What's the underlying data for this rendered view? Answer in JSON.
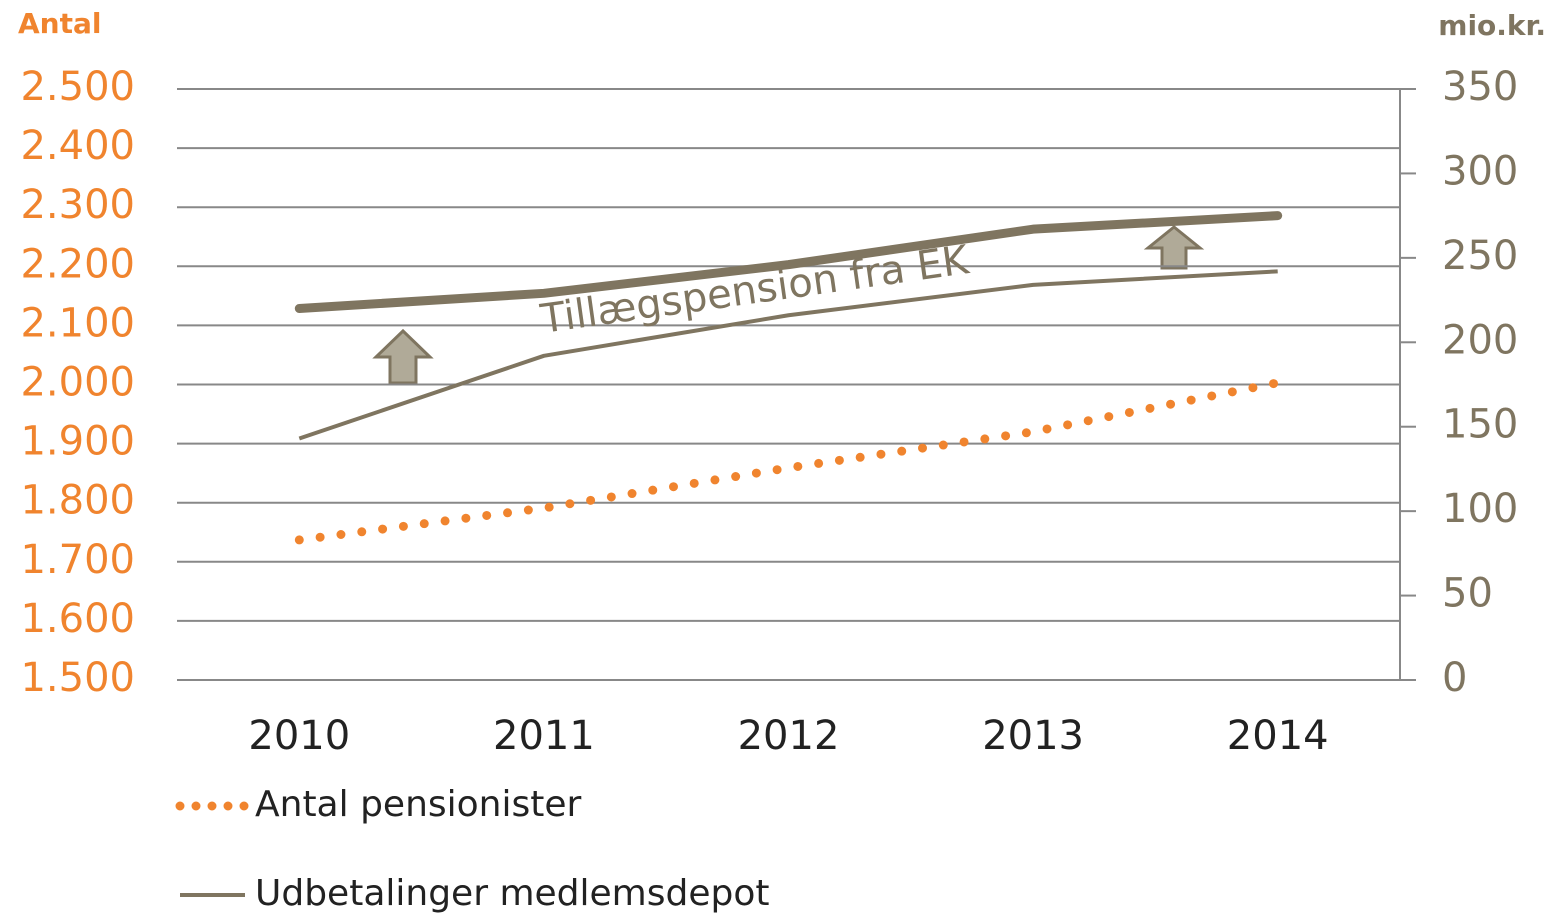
{
  "chart_data": {
    "type": "line",
    "y_label": "Antal",
    "y2_label": "mio.kr.",
    "annotation": "Tillægspension fra EK",
    "categories": [
      "2010",
      "2011",
      "2012",
      "2013",
      "2014"
    ],
    "ylim": [
      1500,
      2500
    ],
    "yticks": [
      {
        "value": 1500,
        "label": "1.500"
      },
      {
        "value": 1600,
        "label": "1.600"
      },
      {
        "value": 1700,
        "label": "1.700"
      },
      {
        "value": 1800,
        "label": "1.800"
      },
      {
        "value": 1900,
        "label": "1.900"
      },
      {
        "value": 2000,
        "label": "2.000"
      },
      {
        "value": 2100,
        "label": "2.100"
      },
      {
        "value": 2200,
        "label": "2.200"
      },
      {
        "value": 2300,
        "label": "2.300"
      },
      {
        "value": 2400,
        "label": "2.400"
      },
      {
        "value": 2500,
        "label": "2.500"
      }
    ],
    "y2lim": [
      0,
      350
    ],
    "y2ticks": [
      0,
      50,
      100,
      150,
      200,
      250,
      300,
      350
    ],
    "grid": true,
    "series": [
      {
        "name": "Antal pensionister",
        "color": "#f0842e",
        "style": "dotted",
        "values": [
          1737,
          1791,
          1859,
          1920,
          2003
        ]
      },
      {
        "name": "Udbetalinger medlemsdepot",
        "color": "#7f7560",
        "style": "solid",
        "axis": "y2",
        "values": [
          143,
          192,
          216,
          234,
          242
        ]
      },
      {
        "color": "#7f7560",
        "style": "thick",
        "axis": "y2",
        "values": [
          220,
          229,
          246,
          267,
          275
        ]
      }
    ]
  }
}
